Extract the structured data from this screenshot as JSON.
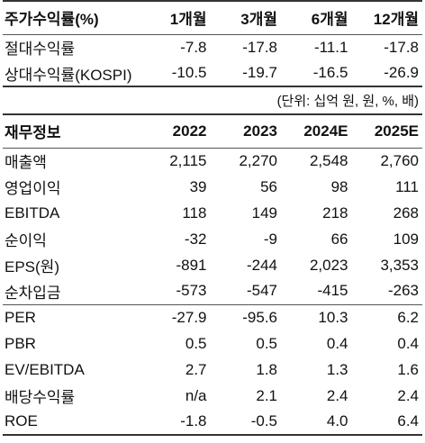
{
  "returns": {
    "headers": [
      "주가수익률(%)",
      "1개월",
      "3개월",
      "6개월",
      "12개월"
    ],
    "rows": [
      [
        "절대수익률",
        "-7.8",
        "-17.8",
        "-11.1",
        "-17.8"
      ],
      [
        "상대수익률(KOSPI)",
        "-10.5",
        "-19.7",
        "-16.5",
        "-26.9"
      ]
    ]
  },
  "unit": "(단위: 십억 원, 원, %, 배)",
  "financials": {
    "headers": [
      "재무정보",
      "2022",
      "2023",
      "2024E",
      "2025E"
    ],
    "rows_a": [
      [
        "매출액",
        "2,115",
        "2,270",
        "2,548",
        "2,760"
      ],
      [
        "영업이익",
        "39",
        "56",
        "98",
        "111"
      ],
      [
        "EBITDA",
        "118",
        "149",
        "218",
        "268"
      ],
      [
        "순이익",
        "-32",
        "-9",
        "66",
        "109"
      ],
      [
        "EPS(원)",
        "-891",
        "-244",
        "2,023",
        "3,353"
      ],
      [
        "순차입금",
        "-573",
        "-547",
        "-415",
        "-263"
      ]
    ],
    "rows_b": [
      [
        "PER",
        "-27.9",
        "-95.6",
        "10.3",
        "6.2"
      ],
      [
        "PBR",
        "0.5",
        "0.5",
        "0.4",
        "0.4"
      ],
      [
        "EV/EBITDA",
        "2.7",
        "1.8",
        "1.3",
        "1.6"
      ],
      [
        "배당수익률",
        "n/a",
        "2.1",
        "2.4",
        "2.4"
      ],
      [
        "ROE",
        "-1.8",
        "-0.5",
        "4.0",
        "6.4"
      ]
    ]
  }
}
